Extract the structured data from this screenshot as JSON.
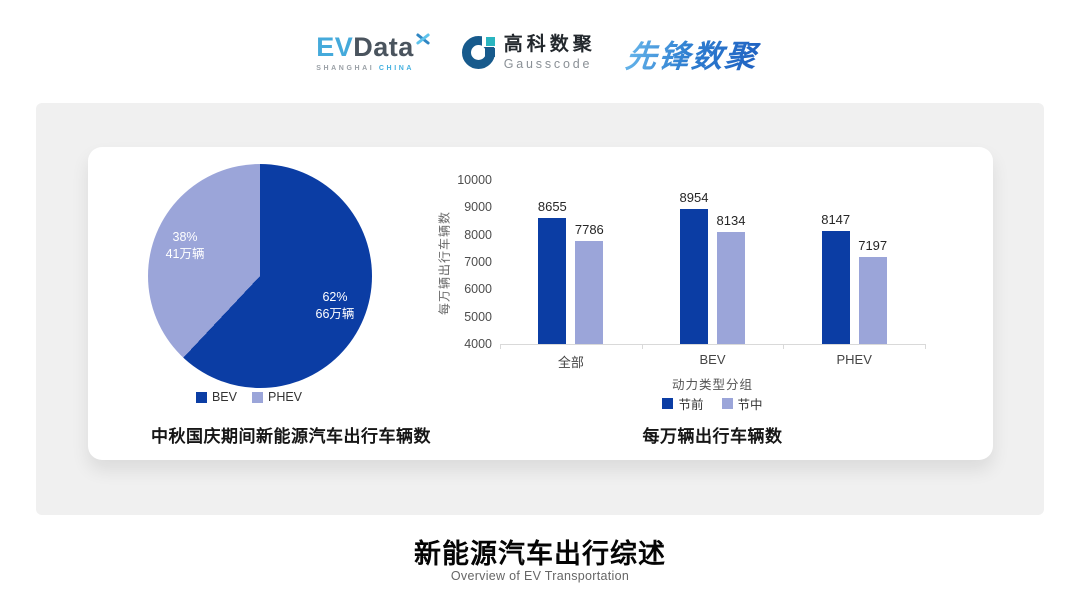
{
  "header": {
    "evdata": {
      "ev": "EV",
      "data": "Data",
      "sub_left": "SHANGHAI",
      "sub_right": "CHINA"
    },
    "gausscode": {
      "cn": "高科数聚",
      "en": "Gausscode"
    },
    "pioneer": "先锋数聚"
  },
  "icons": {
    "evdata_mark": "x-cross-icon",
    "gausscode_mark": "g-ring-icon"
  },
  "colors": {
    "series_dark": "#0B3DA4",
    "series_light": "#9BA5D9",
    "panel_bg": "#F0F0F0",
    "evdata_blue": "#45AADB",
    "gausscode_navy": "#175A8C",
    "gausscode_teal": "#2AB5C0",
    "pioneer_blue_light": "#6AB9EC",
    "pioneer_blue_dark": "#1E5FC0"
  },
  "chart_data": [
    {
      "type": "pie",
      "title": "中秋国庆期间新能源汽车出行车辆数",
      "legend_position": "bottom",
      "start_angle_deg": 0,
      "slices": [
        {
          "name": "BEV",
          "percent": 62,
          "amount": "66万辆",
          "color": "#0B3DA4"
        },
        {
          "name": "PHEV",
          "percent": 38,
          "amount": "41万辆",
          "color": "#9BA5D9"
        }
      ]
    },
    {
      "type": "bar",
      "title": "每万辆出行车辆数",
      "categories": [
        "全部",
        "BEV",
        "PHEV"
      ],
      "series": [
        {
          "name": "节前",
          "color": "#0B3DA4",
          "values": [
            8655,
            8954,
            8147
          ]
        },
        {
          "name": "节中",
          "color": "#9BA5D9",
          "values": [
            7786,
            8134,
            7197
          ]
        }
      ],
      "xlabel": "动力类型分组",
      "ylabel": "每万辆出行车辆数",
      "ylim": [
        4000,
        10000
      ],
      "ytick_step": 1000,
      "grid": false,
      "legend_position": "bottom"
    }
  ],
  "footer": {
    "title": "新能源汽车出行综述",
    "subtitle": "Overview of EV Transportation"
  }
}
